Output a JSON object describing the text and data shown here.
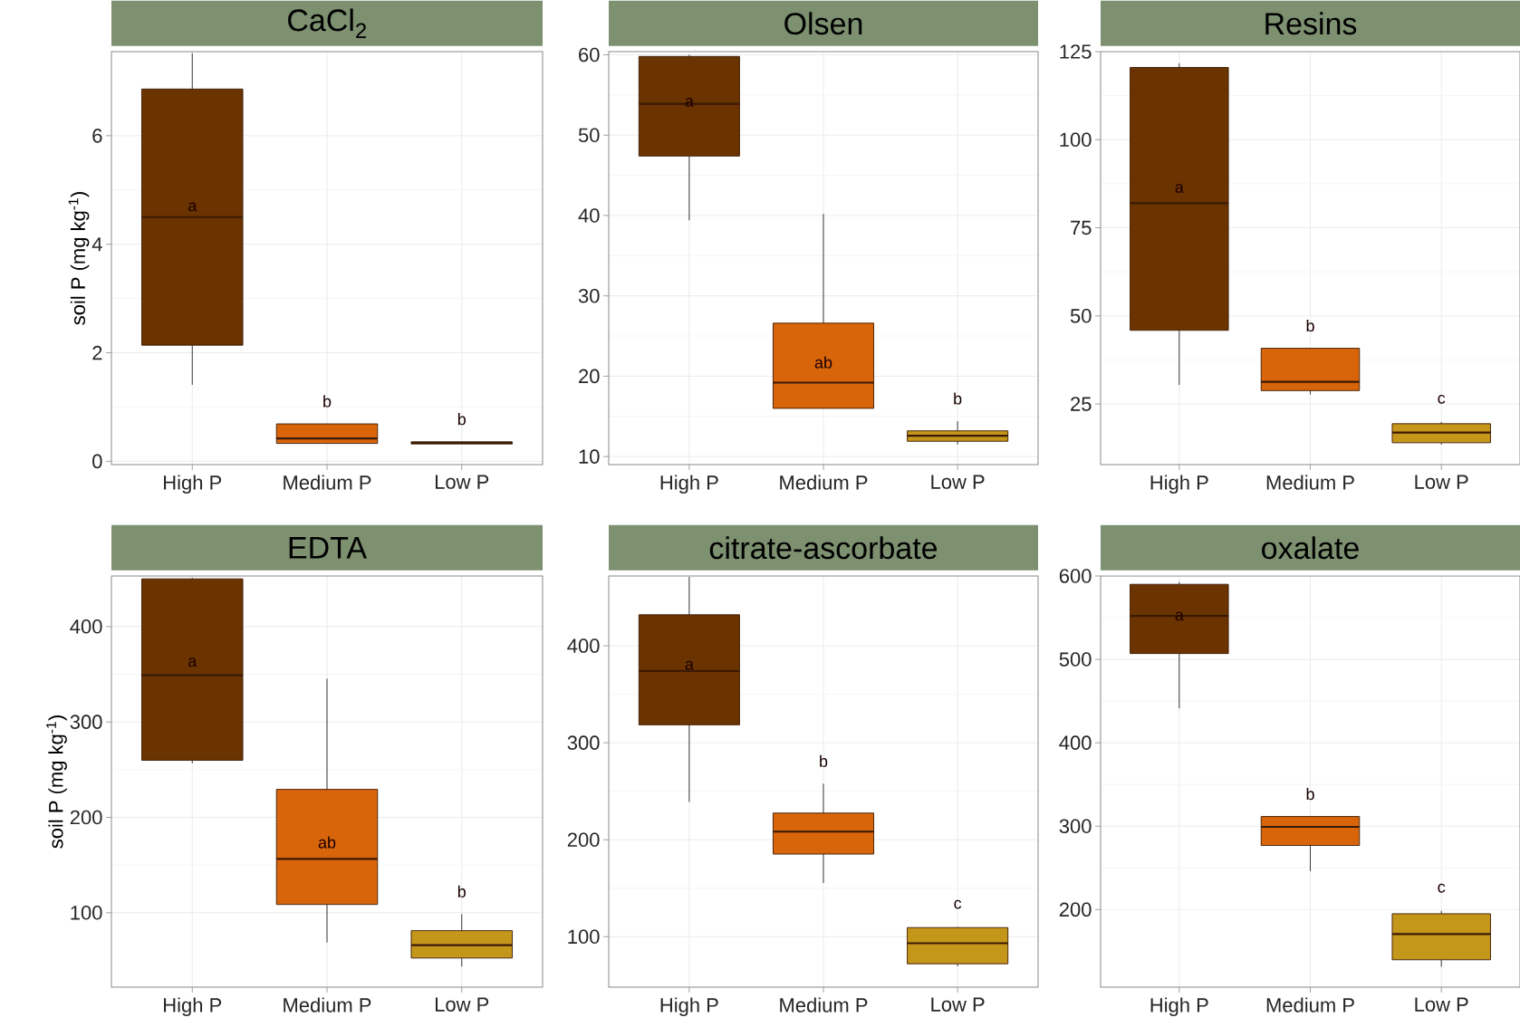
{
  "chart_data": [
    {
      "type": "box",
      "title": "CaCl$_{2}$",
      "ylabel": "soil P (mg kg$^{-1}$)",
      "categories": [
        "High P",
        "Medium P",
        "Low P"
      ],
      "colors": [
        "#6b3300",
        "#d9650a",
        "#c4961a"
      ],
      "boxes": [
        {
          "low": 1.41,
          "q1": 2.14,
          "median": 4.5,
          "q3": 6.86,
          "high": 7.52
        },
        {
          "low": 0.33,
          "q1": 0.33,
          "median": 0.42,
          "q3": 0.69,
          "high": 0.69
        },
        {
          "low": 0.32,
          "q1": 0.32,
          "median": 0.34,
          "q3": 0.36,
          "high": 0.36
        }
      ],
      "ylim": [
        -0.06,
        7.55
      ],
      "yticks": [
        0,
        2,
        4,
        6
      ],
      "grid": true,
      "annotations": [
        "a",
        "b",
        "b"
      ]
    },
    {
      "type": "box",
      "title": "Olsen",
      "categories": [
        "High P",
        "Medium P",
        "Low P"
      ],
      "colors": [
        "#6b3300",
        "#d9650a",
        "#c4961a"
      ],
      "boxes": [
        {
          "low": 39.4,
          "q1": 47.4,
          "median": 53.9,
          "q3": 59.8,
          "high": 60
        },
        {
          "low": 16.0,
          "q1": 16.0,
          "median": 19.2,
          "q3": 26.6,
          "high": 40.2
        },
        {
          "low": 11.5,
          "q1": 11.9,
          "median": 12.6,
          "q3": 13.2,
          "high": 14.4
        }
      ],
      "ylim": [
        9.0,
        60.4
      ],
      "yticks": [
        10,
        20,
        30,
        40,
        50,
        60
      ],
      "grid": true,
      "annotations": [
        "a",
        "ab",
        "b"
      ]
    },
    {
      "type": "box",
      "title": "Resins",
      "categories": [
        "High P",
        "Medium P",
        "Low P"
      ],
      "colors": [
        "#6b3300",
        "#d9650a",
        "#c4961a"
      ],
      "boxes": [
        {
          "low": 30.4,
          "q1": 45.9,
          "median": 82,
          "q3": 120.5,
          "high": 121.7
        },
        {
          "low": 27.7,
          "q1": 28.8,
          "median": 31.3,
          "q3": 40.8,
          "high": 40.8
        },
        {
          "low": 13.5,
          "q1": 14.0,
          "median": 16.9,
          "q3": 19.4,
          "high": 19.9
        }
      ],
      "ylim": [
        7.8,
        125
      ],
      "yticks": [
        25,
        50,
        75,
        100,
        125
      ],
      "grid": true,
      "annotations": [
        "a",
        "b",
        "c"
      ]
    },
    {
      "type": "box",
      "title": "EDTA",
      "ylabel": "soil P (mg kg$^{-1}$)",
      "categories": [
        "High P",
        "Medium P",
        "Low P"
      ],
      "colors": [
        "#6b3300",
        "#d9650a",
        "#c4961a"
      ],
      "boxes": [
        {
          "low": 256.5,
          "q1": 259.8,
          "median": 349,
          "q3": 450,
          "high": 451
        },
        {
          "low": 68.8,
          "q1": 108.7,
          "median": 156.5,
          "q3": 229.3,
          "high": 345.3
        },
        {
          "low": 43.5,
          "q1": 52.5,
          "median": 66,
          "q3": 81.2,
          "high": 98.6
        }
      ],
      "ylim": [
        22,
        453
      ],
      "yticks": [
        100,
        200,
        300,
        400
      ],
      "grid": true,
      "annotations": [
        "a",
        "ab",
        "b"
      ]
    },
    {
      "type": "box",
      "title": "citrate-ascorbate",
      "categories": [
        "High P",
        "Medium P",
        "Low P"
      ],
      "colors": [
        "#6b3300",
        "#d9650a",
        "#c4961a"
      ],
      "boxes": [
        {
          "low": 238.9,
          "q1": 318.5,
          "median": 374,
          "q3": 432,
          "high": 471
        },
        {
          "low": 155.4,
          "q1": 185.2,
          "median": 208.4,
          "q3": 227.5,
          "high": 257.8
        },
        {
          "low": 69.5,
          "q1": 72.1,
          "median": 93.3,
          "q3": 109.4,
          "high": 110
        }
      ],
      "ylim": [
        48,
        472
      ],
      "yticks": [
        100,
        200,
        300,
        400
      ],
      "grid": true,
      "annotations": [
        "a",
        "b",
        "c"
      ]
    },
    {
      "type": "box",
      "title": "oxalate",
      "categories": [
        "High P",
        "Medium P",
        "Low P"
      ],
      "colors": [
        "#6b3300",
        "#d9650a",
        "#c4961a"
      ],
      "boxes": [
        {
          "low": 441.4,
          "q1": 507,
          "median": 552,
          "q3": 590,
          "high": 592.7
        },
        {
          "low": 246,
          "q1": 276.9,
          "median": 299.2,
          "q3": 311.6,
          "high": 311.6
        },
        {
          "low": 131.4,
          "q1": 139.8,
          "median": 170.7,
          "q3": 195,
          "high": 198.5
        }
      ],
      "ylim": [
        107,
        600
      ],
      "yticks": [
        200,
        300,
        400,
        500,
        600
      ],
      "grid": true,
      "annotations": [
        "a",
        "b",
        "c"
      ]
    }
  ]
}
